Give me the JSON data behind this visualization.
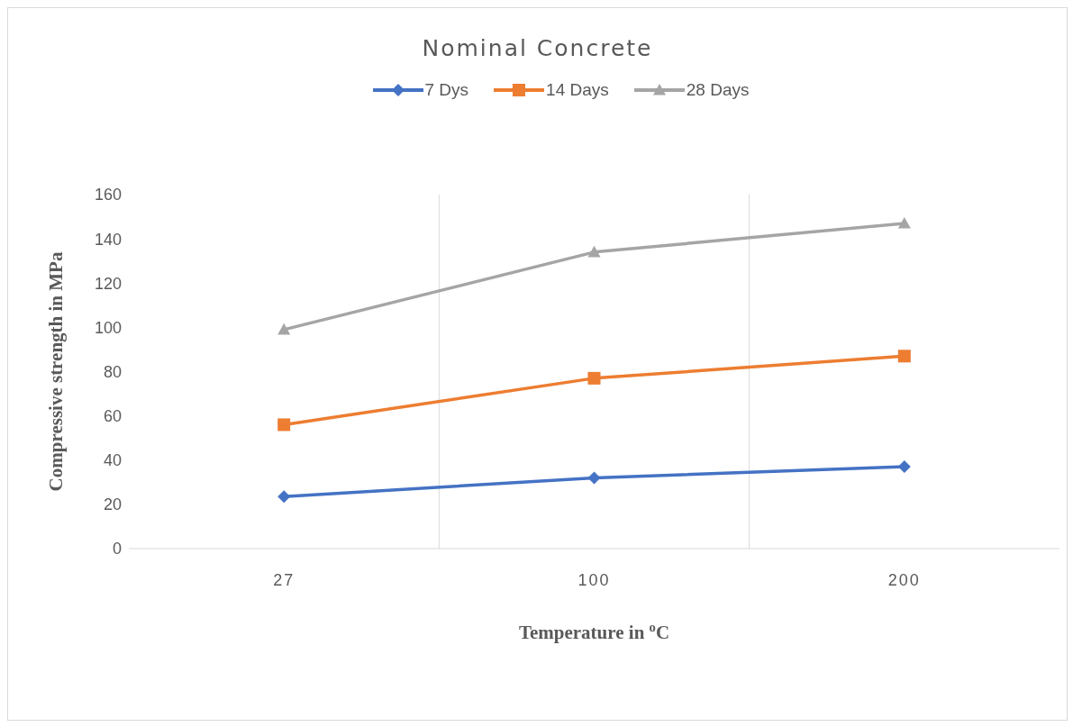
{
  "chart_data": {
    "type": "line",
    "title": "Nominal Concrete",
    "xlabel": "Temperature in $^{o}$C",
    "ylabel": "Compressive strength in MPa",
    "categories": [
      "27",
      "100",
      "200"
    ],
    "series": [
      {
        "name": "7 Dys",
        "color": "#4472c4",
        "marker": "diamond",
        "values": [
          23.5,
          32,
          37
        ]
      },
      {
        "name": "14 Days",
        "color": "#ed7d31",
        "marker": "square",
        "values": [
          56,
          77,
          87
        ]
      },
      {
        "name": "28 Days",
        "color": "#a5a5a5",
        "marker": "triangle",
        "values": [
          99,
          134,
          147
        ]
      }
    ],
    "ylim": [
      0,
      160
    ],
    "yticks": [
      0,
      20,
      40,
      60,
      80,
      100,
      120,
      140,
      160
    ],
    "grid": "x",
    "legend": "top",
    "line_style": "solid"
  }
}
